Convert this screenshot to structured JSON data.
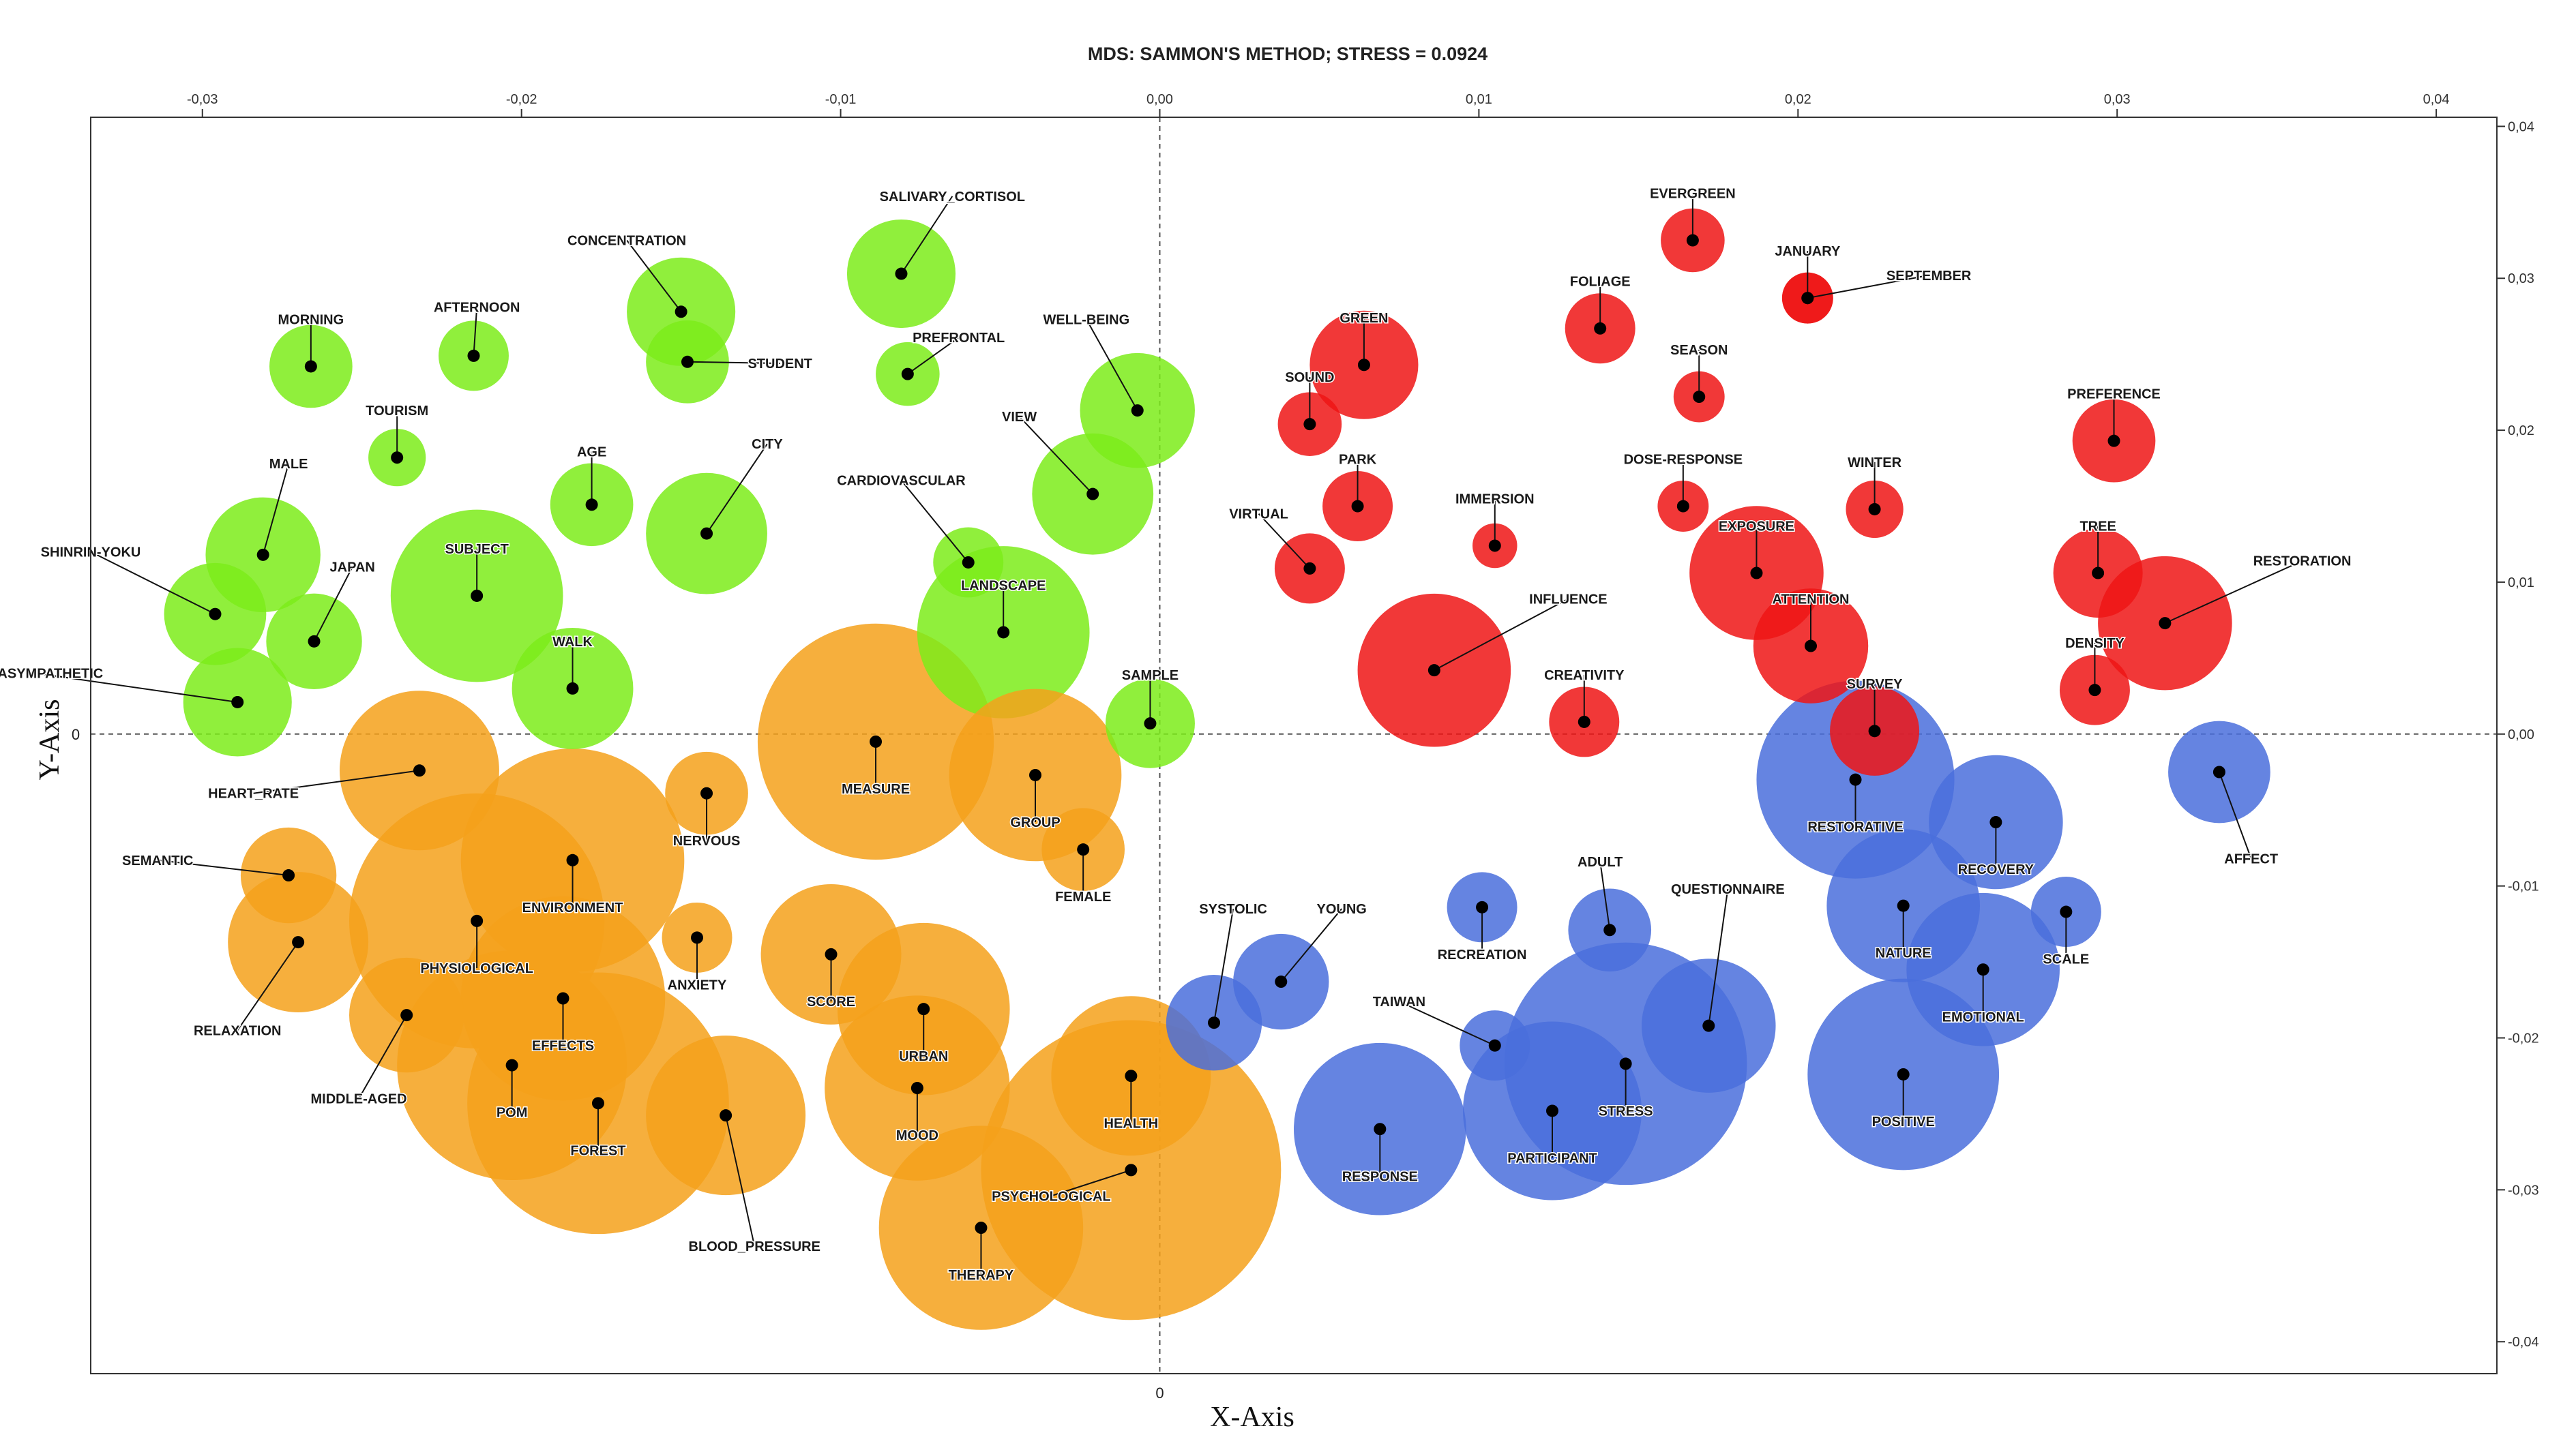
{
  "chart_data": {
    "type": "scatter",
    "subtype": "bubble",
    "title": "MDS: SAMMON'S METHOD; STRESS = 0.0924",
    "xlabel": "X-Axis",
    "ylabel": "Y-Axis",
    "xlim": [
      -0.0335,
      0.0419
    ],
    "ylim": [
      -0.0421,
      0.0406
    ],
    "x_ticks": [
      {
        "value": -0.03,
        "label": "-0,03"
      },
      {
        "value": -0.02,
        "label": "-0,02"
      },
      {
        "value": -0.01,
        "label": "-0,01"
      },
      {
        "value": 0.0,
        "label": "0,00"
      },
      {
        "value": 0.01,
        "label": "0,01"
      },
      {
        "value": 0.02,
        "label": "0,02"
      },
      {
        "value": 0.03,
        "label": "0,03"
      },
      {
        "value": 0.04,
        "label": "0,04"
      }
    ],
    "y_ticks": [
      {
        "value": 0.04,
        "label": "0,04"
      },
      {
        "value": 0.03,
        "label": "0,03"
      },
      {
        "value": 0.02,
        "label": "0,02"
      },
      {
        "value": 0.01,
        "label": "0,01"
      },
      {
        "value": 0.0,
        "label": "0,00"
      },
      {
        "value": -0.01,
        "label": "-0,01"
      },
      {
        "value": -0.02,
        "label": "-0,02"
      },
      {
        "value": -0.03,
        "label": "-0,03"
      },
      {
        "value": -0.04,
        "label": "-0,04"
      }
    ],
    "origin_labels": {
      "x": "0",
      "y": "0"
    },
    "reference_lines": {
      "x": 0,
      "y": 0,
      "style": "dashed"
    },
    "cluster_colors": {
      "green": "#7cec1a",
      "orange": "#f5a11b",
      "red": "#ef1515",
      "blue": "#4a6fdc"
    },
    "points": [
      {
        "name": "SALIVARY_CORTISOL",
        "x": -0.0081,
        "y": 0.0303,
        "size": 0.0017,
        "cluster": "green",
        "lx": -0.0065,
        "ly": 0.0354
      },
      {
        "name": "CONCENTRATION",
        "x": -0.015,
        "y": 0.0278,
        "size": 0.0017,
        "cluster": "green",
        "lx": -0.0167,
        "ly": 0.0325
      },
      {
        "name": "STUDENT",
        "x": -0.0148,
        "y": 0.0245,
        "size": 0.0013,
        "cluster": "green",
        "lx": -0.0119,
        "ly": 0.0244
      },
      {
        "name": "MORNING",
        "x": -0.0266,
        "y": 0.0242,
        "size": 0.0013,
        "cluster": "green",
        "lx": -0.0266,
        "ly": 0.0273
      },
      {
        "name": "AFTERNOON",
        "x": -0.0215,
        "y": 0.0249,
        "size": 0.0011,
        "cluster": "green",
        "lx": -0.0214,
        "ly": 0.0281
      },
      {
        "name": "PREFRONTAL",
        "x": -0.0079,
        "y": 0.0237,
        "size": 0.001,
        "cluster": "green",
        "lx": -0.0063,
        "ly": 0.0261
      },
      {
        "name": "WELL-BEING",
        "x": -0.0007,
        "y": 0.0213,
        "size": 0.0018,
        "cluster": "green",
        "lx": -0.0023,
        "ly": 0.0273
      },
      {
        "name": "VIEW",
        "x": -0.0021,
        "y": 0.0158,
        "size": 0.0019,
        "cluster": "green",
        "lx": -0.0044,
        "ly": 0.0209
      },
      {
        "name": "TOURISM",
        "x": -0.0239,
        "y": 0.0182,
        "size": 0.0009,
        "cluster": "green",
        "lx": -0.0239,
        "ly": 0.0213
      },
      {
        "name": "MALE",
        "x": -0.0281,
        "y": 0.0118,
        "size": 0.0018,
        "cluster": "green",
        "lx": -0.0273,
        "ly": 0.0178
      },
      {
        "name": "AGE",
        "x": -0.0178,
        "y": 0.0151,
        "size": 0.0013,
        "cluster": "green",
        "lx": -0.0178,
        "ly": 0.0186
      },
      {
        "name": "CITY",
        "x": -0.0142,
        "y": 0.0132,
        "size": 0.0019,
        "cluster": "green",
        "lx": -0.0123,
        "ly": 0.0191
      },
      {
        "name": "CARDIOVASCULAR",
        "x": -0.006,
        "y": 0.0113,
        "size": 0.0011,
        "cluster": "green",
        "lx": -0.0081,
        "ly": 0.0167
      },
      {
        "name": "LANDSCAPE",
        "x": -0.0049,
        "y": 0.0067,
        "size": 0.0027,
        "cluster": "green",
        "lx": -0.0049,
        "ly": 0.0098
      },
      {
        "name": "SHINRIN-YOKU",
        "x": -0.0296,
        "y": 0.0079,
        "size": 0.0016,
        "cluster": "green",
        "lx": -0.0335,
        "ly": 0.012
      },
      {
        "name": "JAPAN",
        "x": -0.0265,
        "y": 0.0061,
        "size": 0.0015,
        "cluster": "green",
        "lx": -0.0253,
        "ly": 0.011
      },
      {
        "name": "SUBJECT",
        "x": -0.0214,
        "y": 0.0091,
        "size": 0.0027,
        "cluster": "green",
        "lx": -0.0214,
        "ly": 0.0122
      },
      {
        "name": "WALK",
        "x": -0.0184,
        "y": 0.003,
        "size": 0.0019,
        "cluster": "green",
        "lx": -0.0184,
        "ly": 0.0061
      },
      {
        "name": "PARASYMPATHETIC",
        "x": -0.0289,
        "y": 0.0021,
        "size": 0.0017,
        "cluster": "green",
        "lx": -0.0352,
        "ly": 0.004
      },
      {
        "name": "SAMPLE",
        "x": -0.0003,
        "y": 0.0007,
        "size": 0.0014,
        "cluster": "green",
        "lx": -0.0003,
        "ly": 0.0039
      },
      {
        "name": "HEART_RATE",
        "x": -0.0232,
        "y": -0.0024,
        "size": 0.0025,
        "cluster": "orange",
        "lx": -0.0284,
        "ly": -0.0039
      },
      {
        "name": "MEASURE",
        "x": -0.0089,
        "y": -0.0005,
        "size": 0.0037,
        "cluster": "orange",
        "lx": -0.0089,
        "ly": -0.0036
      },
      {
        "name": "GROUP",
        "x": -0.0039,
        "y": -0.0027,
        "size": 0.0027,
        "cluster": "orange",
        "lx": -0.0039,
        "ly": -0.0058
      },
      {
        "name": "NERVOUS",
        "x": -0.0142,
        "y": -0.0039,
        "size": 0.0013,
        "cluster": "orange",
        "lx": -0.0142,
        "ly": -0.007
      },
      {
        "name": "FEMALE",
        "x": -0.0024,
        "y": -0.0076,
        "size": 0.0013,
        "cluster": "orange",
        "lx": -0.0024,
        "ly": -0.0107
      },
      {
        "name": "SEMANTIC",
        "x": -0.0273,
        "y": -0.0093,
        "size": 0.0015,
        "cluster": "orange",
        "lx": -0.0314,
        "ly": -0.0083
      },
      {
        "name": "ENVIRONMENT",
        "x": -0.0184,
        "y": -0.0083,
        "size": 0.0035,
        "cluster": "orange",
        "lx": -0.0184,
        "ly": -0.0114
      },
      {
        "name": "PHYSIOLOGICAL",
        "x": -0.0214,
        "y": -0.0123,
        "size": 0.004,
        "cluster": "orange",
        "lx": -0.0214,
        "ly": -0.0154
      },
      {
        "name": "ANXIETY",
        "x": -0.0145,
        "y": -0.0134,
        "size": 0.0011,
        "cluster": "orange",
        "lx": -0.0145,
        "ly": -0.0165
      },
      {
        "name": "RELAXATION",
        "x": -0.027,
        "y": -0.0137,
        "size": 0.0022,
        "cluster": "orange",
        "lx": -0.0289,
        "ly": -0.0195
      },
      {
        "name": "SCORE",
        "x": -0.0103,
        "y": -0.0145,
        "size": 0.0022,
        "cluster": "orange",
        "lx": -0.0103,
        "ly": -0.0176
      },
      {
        "name": "URBAN",
        "x": -0.0074,
        "y": -0.0181,
        "size": 0.0027,
        "cluster": "orange",
        "lx": -0.0074,
        "ly": -0.0212
      },
      {
        "name": "EFFECTS",
        "x": -0.0187,
        "y": -0.0174,
        "size": 0.0032,
        "cluster": "orange",
        "lx": -0.0187,
        "ly": -0.0205
      },
      {
        "name": "MIDDLE-AGED",
        "x": -0.0236,
        "y": -0.0185,
        "size": 0.0018,
        "cluster": "orange",
        "lx": -0.0251,
        "ly": -0.024
      },
      {
        "name": "POM",
        "x": -0.0203,
        "y": -0.0218,
        "size": 0.0036,
        "cluster": "orange",
        "lx": -0.0203,
        "ly": -0.0249
      },
      {
        "name": "FOREST",
        "x": -0.0176,
        "y": -0.0243,
        "size": 0.0041,
        "cluster": "orange",
        "lx": -0.0176,
        "ly": -0.0274
      },
      {
        "name": "BLOOD_PRESSURE",
        "x": -0.0136,
        "y": -0.0251,
        "size": 0.0025,
        "cluster": "orange",
        "lx": -0.0127,
        "ly": -0.0337
      },
      {
        "name": "MOOD",
        "x": -0.0076,
        "y": -0.0233,
        "size": 0.0029,
        "cluster": "orange",
        "lx": -0.0076,
        "ly": -0.0264
      },
      {
        "name": "HEALTH",
        "x": -0.0009,
        "y": -0.0225,
        "size": 0.0025,
        "cluster": "orange",
        "lx": -0.0009,
        "ly": -0.0256
      },
      {
        "name": "PSYCHOLOGICAL",
        "x": -0.0009,
        "y": -0.0287,
        "size": 0.0047,
        "cluster": "orange",
        "lx": -0.0034,
        "ly": -0.0304
      },
      {
        "name": "THERAPY",
        "x": -0.0056,
        "y": -0.0325,
        "size": 0.0032,
        "cluster": "orange",
        "lx": -0.0056,
        "ly": -0.0356
      },
      {
        "name": "EVERGREEN",
        "x": 0.0167,
        "y": 0.0325,
        "size": 0.001,
        "cluster": "red",
        "lx": 0.0167,
        "ly": 0.0356
      },
      {
        "name": "JANUARY",
        "x": 0.0203,
        "y": 0.0287,
        "size": 0.0008,
        "cluster": "red",
        "lx": 0.0203,
        "ly": 0.0318
      },
      {
        "name": "SEPTEMBER",
        "x": 0.0203,
        "y": 0.0287,
        "size": 0.0008,
        "cluster": "red",
        "lx": 0.0241,
        "ly": 0.0302
      },
      {
        "name": "FOLIAGE",
        "x": 0.0138,
        "y": 0.0267,
        "size": 0.0011,
        "cluster": "red",
        "lx": 0.0138,
        "ly": 0.0298
      },
      {
        "name": "GREEN",
        "x": 0.0064,
        "y": 0.0243,
        "size": 0.0017,
        "cluster": "red",
        "lx": 0.0064,
        "ly": 0.0274
      },
      {
        "name": "SEASON",
        "x": 0.0169,
        "y": 0.0222,
        "size": 0.0008,
        "cluster": "red",
        "lx": 0.0169,
        "ly": 0.0253
      },
      {
        "name": "SOUND",
        "x": 0.0047,
        "y": 0.0204,
        "size": 0.001,
        "cluster": "red",
        "lx": 0.0047,
        "ly": 0.0235
      },
      {
        "name": "PREFERENCE",
        "x": 0.0299,
        "y": 0.0193,
        "size": 0.0013,
        "cluster": "red",
        "lx": 0.0299,
        "ly": 0.0224
      },
      {
        "name": "PARK",
        "x": 0.0062,
        "y": 0.015,
        "size": 0.0011,
        "cluster": "red",
        "lx": 0.0062,
        "ly": 0.0181
      },
      {
        "name": "DOSE-RESPONSE",
        "x": 0.0164,
        "y": 0.015,
        "size": 0.0008,
        "cluster": "red",
        "lx": 0.0164,
        "ly": 0.0181
      },
      {
        "name": "WINTER",
        "x": 0.0224,
        "y": 0.0148,
        "size": 0.0009,
        "cluster": "red",
        "lx": 0.0224,
        "ly": 0.0179
      },
      {
        "name": "VIRTUAL",
        "x": 0.0047,
        "y": 0.0109,
        "size": 0.0011,
        "cluster": "red",
        "lx": 0.0031,
        "ly": 0.0145
      },
      {
        "name": "IMMERSION",
        "x": 0.0105,
        "y": 0.0124,
        "size": 0.0007,
        "cluster": "red",
        "lx": 0.0105,
        "ly": 0.0155
      },
      {
        "name": "EXPOSURE",
        "x": 0.0187,
        "y": 0.0106,
        "size": 0.0021,
        "cluster": "red",
        "lx": 0.0187,
        "ly": 0.0137
      },
      {
        "name": "TREE",
        "x": 0.0294,
        "y": 0.0106,
        "size": 0.0014,
        "cluster": "red",
        "lx": 0.0294,
        "ly": 0.0137
      },
      {
        "name": "RESTORATION",
        "x": 0.0315,
        "y": 0.0073,
        "size": 0.0021,
        "cluster": "red",
        "lx": 0.0358,
        "ly": 0.0114
      },
      {
        "name": "INFLUENCE",
        "x": 0.0086,
        "y": 0.0042,
        "size": 0.0024,
        "cluster": "red",
        "lx": 0.0128,
        "ly": 0.0089
      },
      {
        "name": "ATTENTION",
        "x": 0.0204,
        "y": 0.0058,
        "size": 0.0018,
        "cluster": "red",
        "lx": 0.0204,
        "ly": 0.0089
      },
      {
        "name": "DENSITY",
        "x": 0.0293,
        "y": 0.0029,
        "size": 0.0011,
        "cluster": "red",
        "lx": 0.0293,
        "ly": 0.006
      },
      {
        "name": "CREATIVITY",
        "x": 0.0133,
        "y": 0.0008,
        "size": 0.0011,
        "cluster": "red",
        "lx": 0.0133,
        "ly": 0.0039
      },
      {
        "name": "SURVEY",
        "x": 0.0224,
        "y": 0.0002,
        "size": 0.0014,
        "cluster": "red",
        "lx": 0.0224,
        "ly": 0.0033
      },
      {
        "name": "RESTORATIVE",
        "x": 0.0218,
        "y": -0.003,
        "size": 0.0031,
        "cluster": "blue",
        "lx": 0.0218,
        "ly": -0.0061
      },
      {
        "name": "AFFECT",
        "x": 0.0332,
        "y": -0.0025,
        "size": 0.0016,
        "cluster": "blue",
        "lx": 0.0342,
        "ly": -0.0082
      },
      {
        "name": "RECOVERY",
        "x": 0.0262,
        "y": -0.0058,
        "size": 0.0021,
        "cluster": "blue",
        "lx": 0.0262,
        "ly": -0.0089
      },
      {
        "name": "ADULT",
        "x": 0.0141,
        "y": -0.0129,
        "size": 0.0013,
        "cluster": "blue",
        "lx": 0.0138,
        "ly": -0.0084
      },
      {
        "name": "QUESTIONNAIRE",
        "x": 0.0172,
        "y": -0.0192,
        "size": 0.0021,
        "cluster": "blue",
        "lx": 0.0178,
        "ly": -0.0102
      },
      {
        "name": "SYSTOLIC",
        "x": 0.0017,
        "y": -0.019,
        "size": 0.0015,
        "cluster": "blue",
        "lx": 0.0023,
        "ly": -0.0115
      },
      {
        "name": "YOUNG",
        "x": 0.0038,
        "y": -0.0163,
        "size": 0.0015,
        "cluster": "blue",
        "lx": 0.0057,
        "ly": -0.0115
      },
      {
        "name": "RECREATION",
        "x": 0.0101,
        "y": -0.0114,
        "size": 0.0011,
        "cluster": "blue",
        "lx": 0.0101,
        "ly": -0.0145
      },
      {
        "name": "NATURE",
        "x": 0.0233,
        "y": -0.0113,
        "size": 0.0024,
        "cluster": "blue",
        "lx": 0.0233,
        "ly": -0.0144
      },
      {
        "name": "SCALE",
        "x": 0.0284,
        "y": -0.0117,
        "size": 0.0011,
        "cluster": "blue",
        "lx": 0.0284,
        "ly": -0.0148
      },
      {
        "name": "EMOTIONAL",
        "x": 0.0258,
        "y": -0.0155,
        "size": 0.0024,
        "cluster": "blue",
        "lx": 0.0258,
        "ly": -0.0186
      },
      {
        "name": "TAIWAN",
        "x": 0.0105,
        "y": -0.0205,
        "size": 0.0011,
        "cluster": "blue",
        "lx": 0.0075,
        "ly": -0.0176
      },
      {
        "name": "STRESS",
        "x": 0.0146,
        "y": -0.0217,
        "size": 0.0038,
        "cluster": "blue",
        "lx": 0.0146,
        "ly": -0.0248
      },
      {
        "name": "PARTICIPANT",
        "x": 0.0123,
        "y": -0.0248,
        "size": 0.0028,
        "cluster": "blue",
        "lx": 0.0123,
        "ly": -0.0279
      },
      {
        "name": "RESPONSE",
        "x": 0.0069,
        "y": -0.026,
        "size": 0.0027,
        "cluster": "blue",
        "lx": 0.0069,
        "ly": -0.0291
      },
      {
        "name": "POSITIVE",
        "x": 0.0233,
        "y": -0.0224,
        "size": 0.003,
        "cluster": "blue",
        "lx": 0.0233,
        "ly": -0.0255
      }
    ]
  }
}
